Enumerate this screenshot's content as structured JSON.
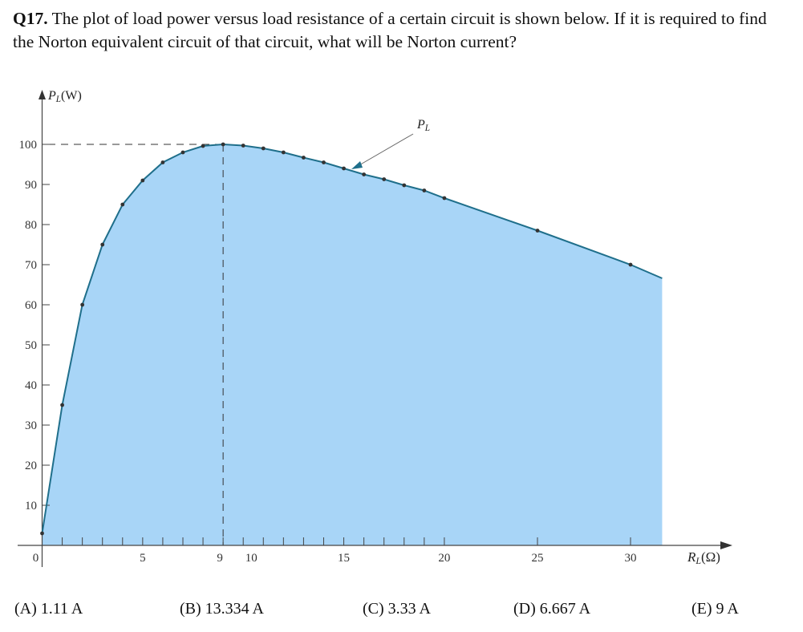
{
  "question": {
    "number": "Q17.",
    "text": " The plot of load power versus load resistance of a certain circuit is shown below. If it is required to find the Norton equivalent circuit of that circuit, what will be Norton current?"
  },
  "options": [
    {
      "label": "(A)  1.11 A"
    },
    {
      "label": "(B)  13.334 A"
    },
    {
      "label": "(C)  3.33 A"
    },
    {
      "label": "(D)  6.667 A"
    },
    {
      "label": "(E)  9 A"
    }
  ],
  "chart_data": {
    "type": "area",
    "xlabel": "R_L (Ω)",
    "ylabel": "P_L(W)",
    "xlabel_main": "R",
    "xlabel_sub": "L",
    "xlabel_unit": "(Ω)",
    "ylabel_main": "P",
    "ylabel_sub": "L",
    "ylabel_unit": "(W)",
    "series_label_main": "P",
    "series_label_sub": "L",
    "x_tick_labels": [
      "0",
      "5",
      "9",
      "10",
      "15",
      "20",
      "25",
      "30"
    ],
    "x_ticks": [
      0,
      5,
      9,
      10,
      15,
      20,
      25,
      30
    ],
    "y_ticks": [
      10,
      20,
      30,
      40,
      50,
      60,
      70,
      80,
      90,
      100
    ],
    "y_tick_labels": [
      "10",
      "20",
      "30",
      "40",
      "50",
      "60",
      "70",
      "80",
      "90",
      "100"
    ],
    "xlim": [
      0,
      31.7
    ],
    "ylim": [
      0,
      100
    ],
    "max_point": {
      "x": 9,
      "y": 100
    },
    "fill_color": "#a8d5f7",
    "line_color": "#1f6f8b",
    "points": [
      [
        0,
        3
      ],
      [
        1,
        35
      ],
      [
        2,
        60
      ],
      [
        3,
        75
      ],
      [
        4,
        85
      ],
      [
        5,
        91
      ],
      [
        6,
        95.5
      ],
      [
        7,
        98
      ],
      [
        8,
        99.6
      ],
      [
        9,
        100
      ],
      [
        10,
        99.7
      ],
      [
        11,
        99
      ],
      [
        12,
        98
      ],
      [
        13,
        96.7
      ],
      [
        14,
        95.5
      ],
      [
        15,
        94
      ],
      [
        16,
        92.5
      ],
      [
        17,
        91.3
      ],
      [
        18,
        89.8
      ],
      [
        19,
        88.5
      ],
      [
        20,
        86.6
      ],
      [
        25,
        78.5
      ],
      [
        30,
        70
      ]
    ],
    "curve_end": [
      31.7,
      66.6
    ]
  }
}
